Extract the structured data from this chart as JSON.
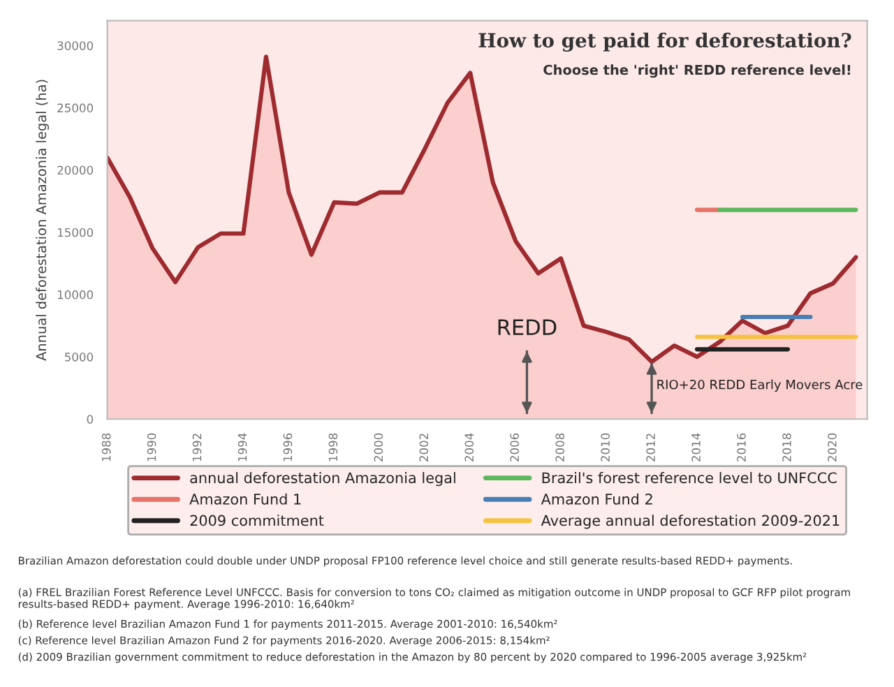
{
  "chart_data": {
    "type": "line",
    "title": "How to get paid for deforestation?",
    "subtitle": "Choose the 'right' REDD reference level!",
    "ylabel": "Annual deforestation Amazonia legal (ha)",
    "x": [
      1988,
      1989,
      1990,
      1991,
      1992,
      1993,
      1994,
      1995,
      1996,
      1997,
      1998,
      1999,
      2000,
      2001,
      2002,
      2003,
      2004,
      2005,
      2006,
      2007,
      2008,
      2009,
      2010,
      2011,
      2012,
      2013,
      2014,
      2015,
      2016,
      2017,
      2018,
      2019,
      2020,
      2021
    ],
    "series": [
      {
        "name": "annual deforestation Amazonia legal",
        "type": "area",
        "color": "#9e2b2f",
        "values": [
          21000,
          17800,
          13700,
          11000,
          13800,
          14900,
          14900,
          29100,
          18200,
          13200,
          17400,
          17300,
          18200,
          18200,
          21700,
          25400,
          27800,
          19000,
          14300,
          11700,
          12900,
          7500,
          7000,
          6400,
          4600,
          5900,
          5000,
          6200,
          7900,
          6900,
          7500,
          10100,
          10900,
          13000
        ]
      },
      {
        "name": "Amazon Fund 1",
        "color": "#e8736b",
        "x": [
          2014,
          2015
        ],
        "values": [
          16800,
          16800
        ]
      },
      {
        "name": "2009 commitment",
        "color": "#222222",
        "x": [
          2014,
          2018
        ],
        "values": [
          5600,
          5600
        ]
      },
      {
        "name": "Brazil's forest reference level to UNFCCC",
        "color": "#5cb85c",
        "x": [
          2015,
          2021
        ],
        "values": [
          16800,
          16800
        ]
      },
      {
        "name": "Amazon Fund 2",
        "color": "#4a7fb5",
        "x": [
          2016,
          2019
        ],
        "values": [
          8200,
          8200
        ]
      },
      {
        "name": "Average annual deforestation 2009-2021",
        "color": "#f5c242",
        "x": [
          2014,
          2021
        ],
        "values": [
          6600,
          6600
        ]
      }
    ],
    "xlim": [
      1988,
      2021.5
    ],
    "xticks": [
      1988,
      1990,
      1992,
      1994,
      1996,
      1998,
      2000,
      2002,
      2004,
      2006,
      2008,
      2010,
      2012,
      2014,
      2016,
      2018,
      2020
    ],
    "ylim": [
      0,
      32000
    ],
    "yticks": [
      0,
      5000,
      10000,
      15000,
      20000,
      25000,
      30000
    ],
    "grid": false,
    "legend": "bottom",
    "ref_lines": [
      {
        "axis": "x",
        "value": 2006.5,
        "label": "REDD"
      },
      {
        "axis": "x",
        "value": 2012,
        "label": "RIO+20 REDD Early Movers Acre"
      }
    ],
    "annotations": [
      "Brazilian Amazon deforestation could double under UNDP proposal FP100 reference level choice and still generate results-based REDD+ payments.",
      "(a) FREL Brazilian Forest Reference Level UNFCCC. Basis for conversion to tons CO₂ claimed as mitigation outcome in UNDP proposal to GCF RFP pilot program results-based REDD+ payment. Average 1996-2010: 16,640km²",
      "(b) Reference level Brazilian Amazon Fund 1 for payments 2011-2015. Average 2001-2010: 16,540km²",
      "(c) Reference level Brazilian Amazon Fund 2 for payments 2016-2020. Average 2006-2015: 8,154km²",
      "(d) 2009 Brazilian government commitment to reduce deforestation in the Amazon by 80 percent by 2020 compared to 1996-2005 average 3,925km²"
    ]
  }
}
